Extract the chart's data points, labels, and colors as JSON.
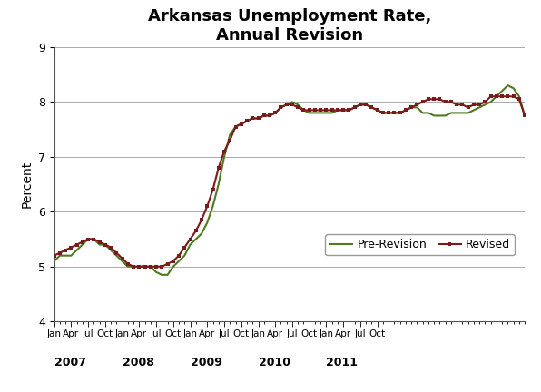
{
  "title_line1": "Arkansas Unemployment Rate,",
  "title_line2": "Annual Revision",
  "ylabel": "Percent",
  "ylim": [
    4,
    9
  ],
  "yticks": [
    4,
    5,
    6,
    7,
    8,
    9
  ],
  "background_color": "#ffffff",
  "pre_revision_color": "#4e7a1e",
  "revised_color": "#7b1a1a",
  "legend_labels": [
    "Pre-Revision",
    "Revised"
  ],
  "pre_revision": [
    5.1,
    5.2,
    5.2,
    5.2,
    5.3,
    5.4,
    5.5,
    5.5,
    5.4,
    5.4,
    5.3,
    5.2,
    5.1,
    5.0,
    5.0,
    5.0,
    5.0,
    5.0,
    4.9,
    4.85,
    4.85,
    5.0,
    5.1,
    5.2,
    5.4,
    5.5,
    5.6,
    5.8,
    6.1,
    6.5,
    7.0,
    7.4,
    7.55,
    7.6,
    7.65,
    7.7,
    7.7,
    7.75,
    7.75,
    7.8,
    7.9,
    7.95,
    8.0,
    7.95,
    7.85,
    7.8,
    7.8,
    7.8,
    7.8,
    7.8,
    7.85,
    7.85,
    7.85,
    7.9,
    7.95,
    7.95,
    7.9,
    7.85,
    7.8,
    7.8,
    7.8,
    7.8,
    7.85,
    7.9,
    7.9,
    7.8,
    7.8,
    7.75,
    7.75,
    7.75,
    7.8,
    7.8,
    7.8,
    7.8,
    7.85,
    7.9,
    7.95,
    8.0,
    8.1,
    8.2,
    8.3,
    8.25,
    8.1,
    7.75
  ],
  "revised": [
    5.2,
    5.25,
    5.3,
    5.35,
    5.4,
    5.45,
    5.5,
    5.5,
    5.45,
    5.4,
    5.35,
    5.25,
    5.15,
    5.05,
    5.0,
    5.0,
    5.0,
    5.0,
    5.0,
    5.0,
    5.05,
    5.1,
    5.2,
    5.35,
    5.5,
    5.65,
    5.85,
    6.1,
    6.4,
    6.8,
    7.1,
    7.3,
    7.55,
    7.6,
    7.65,
    7.7,
    7.7,
    7.75,
    7.75,
    7.8,
    7.9,
    7.95,
    7.95,
    7.9,
    7.85,
    7.85,
    7.85,
    7.85,
    7.85,
    7.85,
    7.85,
    7.85,
    7.85,
    7.9,
    7.95,
    7.95,
    7.9,
    7.85,
    7.8,
    7.8,
    7.8,
    7.8,
    7.85,
    7.9,
    7.95,
    8.0,
    8.05,
    8.05,
    8.05,
    8.0,
    8.0,
    7.95,
    7.95,
    7.9,
    7.95,
    7.95,
    8.0,
    8.1,
    8.1,
    8.1,
    8.1,
    8.1,
    8.05,
    7.75
  ],
  "major_tick_months": [
    0,
    3,
    6,
    9,
    12,
    15,
    18,
    21,
    24,
    27,
    30,
    33,
    36,
    39,
    42,
    45,
    48,
    51,
    54,
    57
  ],
  "major_tick_labels": [
    "Jan",
    "Apr",
    "Jul",
    "Oct",
    "Jan",
    "Apr",
    "Jul",
    "Oct",
    "Jan",
    "Apr",
    "Jul",
    "Oct",
    "Jan",
    "Apr",
    "Jul",
    "Oct",
    "Jan",
    "Apr",
    "Jul",
    "Oct"
  ],
  "year_positions": [
    0,
    12,
    24,
    36,
    48
  ],
  "year_labels": [
    "2007",
    "2008",
    "2009",
    "2010",
    "2011"
  ]
}
